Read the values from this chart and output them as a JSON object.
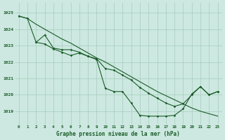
{
  "xlabel": "Graphe pression niveau de la mer (hPa)",
  "bg_color": "#cce8e0",
  "grid_color": "#a8ccbe",
  "line_color": "#1a5c28",
  "xlim": [
    -0.5,
    23.5
  ],
  "ylim": [
    1018.2,
    1025.6
  ],
  "yticks": [
    1019,
    1020,
    1021,
    1022,
    1023,
    1024,
    1025
  ],
  "xticks": [
    0,
    1,
    2,
    3,
    4,
    5,
    6,
    7,
    8,
    9,
    10,
    11,
    12,
    13,
    14,
    15,
    16,
    17,
    18,
    19,
    20,
    21,
    22,
    23
  ],
  "series": [
    {
      "x": [
        0,
        1,
        2,
        3,
        4,
        5,
        6,
        7,
        8,
        9,
        10,
        11,
        12,
        13,
        14,
        15,
        16,
        17,
        18,
        19,
        20,
        21,
        22,
        23
      ],
      "y": [
        1024.8,
        1024.65,
        1024.3,
        1024.0,
        1023.7,
        1023.4,
        1023.15,
        1022.85,
        1022.55,
        1022.25,
        1022.0,
        1021.7,
        1021.4,
        1021.1,
        1020.8,
        1020.5,
        1020.2,
        1019.95,
        1019.7,
        1019.45,
        1019.2,
        1019.0,
        1018.85,
        1018.7
      ],
      "marker": false
    },
    {
      "x": [
        0,
        1,
        2,
        3,
        4,
        5,
        6,
        7,
        8,
        9,
        10,
        11,
        12,
        13,
        14,
        15,
        16,
        17,
        18,
        19,
        20,
        21,
        22,
        23
      ],
      "y": [
        1024.8,
        1024.65,
        1023.2,
        1023.65,
        1022.85,
        1022.75,
        1022.75,
        1022.6,
        1022.35,
        1022.2,
        1021.6,
        1021.5,
        1021.2,
        1020.9,
        1020.45,
        1020.1,
        1019.8,
        1019.5,
        1019.3,
        1019.45,
        1020.0,
        1020.5,
        1020.0,
        1020.2
      ],
      "marker": true
    },
    {
      "x": [
        2,
        3,
        4,
        5,
        6,
        7,
        8,
        9,
        10,
        11,
        12,
        13,
        14,
        15,
        16,
        17,
        18,
        19,
        20,
        21,
        22,
        23
      ],
      "y": [
        1023.2,
        1023.1,
        1022.8,
        1022.6,
        1022.4,
        1022.55,
        1022.35,
        1022.15,
        1020.4,
        1020.2,
        1020.2,
        1019.5,
        1018.75,
        1018.7,
        1018.7,
        1018.7,
        1018.75,
        1019.15,
        1020.05,
        1020.5,
        1020.0,
        1020.2
      ],
      "marker": true
    }
  ]
}
